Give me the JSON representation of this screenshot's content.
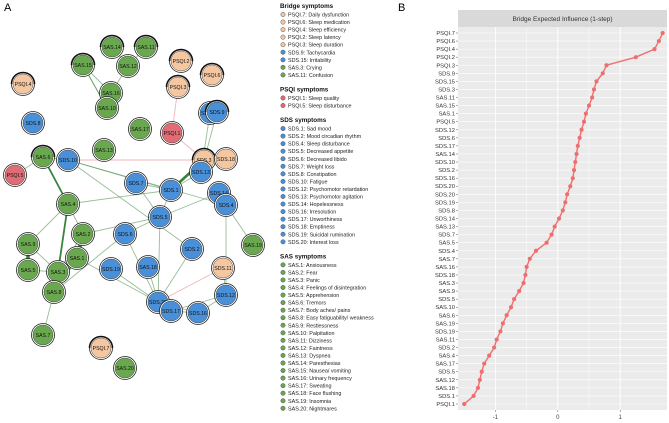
{
  "panel_labels": {
    "a": "A",
    "b": "B"
  },
  "colors": {
    "sds": "#4a90d9",
    "sas": "#6aa84f",
    "psqi_bridge": "#f4c7a1",
    "psqi_symptom": "#e06c75",
    "edge_pos": "#2e7d32",
    "edge_neg": "#e06c75",
    "line": "#f06e6e",
    "strip": "#d9d9d9",
    "panel_bg": "#ebebeb"
  },
  "network": {
    "nodes": [
      {
        "id": "SAS.14",
        "group": "sas",
        "bridge": true
      },
      {
        "id": "SAS.11",
        "group": "sas",
        "bridge": true
      },
      {
        "id": "SAS.15",
        "group": "sas",
        "bridge": true
      },
      {
        "id": "SAS.12",
        "group": "sas",
        "bridge": false
      },
      {
        "id": "SAS.16",
        "group": "sas",
        "bridge": false
      },
      {
        "id": "SAS.10",
        "group": "sas",
        "bridge": false
      },
      {
        "id": "SDS.8",
        "group": "sds",
        "bridge": false
      },
      {
        "id": "SAS.17",
        "group": "sas",
        "bridge": false
      },
      {
        "id": "SAS.13",
        "group": "sas",
        "bridge": false
      },
      {
        "id": "SAS.6",
        "group": "sas",
        "bridge": true
      },
      {
        "id": "SDS.10",
        "group": "sds",
        "bridge": false
      },
      {
        "id": "PSQI.5",
        "group": "psqi_symptom",
        "bridge": false
      },
      {
        "id": "SAS.4",
        "group": "sas",
        "bridge": false
      },
      {
        "id": "SAS.9",
        "group": "sas",
        "bridge": false
      },
      {
        "id": "SAS.2",
        "group": "sas",
        "bridge": false
      },
      {
        "id": "SAS.5",
        "group": "sas",
        "bridge": false
      },
      {
        "id": "SAS.3",
        "group": "sas",
        "bridge": false
      },
      {
        "id": "SAS.1",
        "group": "sas",
        "bridge": false
      },
      {
        "id": "SAS.8",
        "group": "sas",
        "bridge": false
      },
      {
        "id": "SAS.7",
        "group": "sas",
        "bridge": false
      },
      {
        "id": "PSQI.2",
        "group": "psqi_bridge",
        "bridge": true
      },
      {
        "id": "PSQI.4",
        "group": "psqi_bridge",
        "bridge": true
      },
      {
        "id": "PSQI.3",
        "group": "psqi_bridge",
        "bridge": true
      },
      {
        "id": "PSQI.6",
        "group": "psqi_bridge",
        "bridge": true
      },
      {
        "id": "PSQI.1",
        "group": "psqi_symptom",
        "bridge": false
      },
      {
        "id": "SDS.15",
        "group": "sds",
        "bridge": false
      },
      {
        "id": "SDS.9",
        "group": "sds",
        "bridge": true
      },
      {
        "id": "SDS.3",
        "group": "psqi_bridge",
        "bridge": true
      },
      {
        "id": "SDS.13",
        "group": "sds",
        "bridge": false
      },
      {
        "id": "SDS.1",
        "group": "sds",
        "bridge": false
      },
      {
        "id": "SDS.18",
        "group": "psqi_bridge",
        "bridge": false
      },
      {
        "id": "SDS.7",
        "group": "sds",
        "bridge": false
      },
      {
        "id": "SDS.14",
        "group": "sds",
        "bridge": false
      },
      {
        "id": "SDS.5",
        "group": "sds",
        "bridge": false
      },
      {
        "id": "SDS.6",
        "group": "sds",
        "bridge": false
      },
      {
        "id": "SDS.4",
        "group": "sds",
        "bridge": false
      },
      {
        "id": "SDS.2",
        "group": "sds",
        "bridge": false
      },
      {
        "id": "SAS.18",
        "group": "sds",
        "bridge": false
      },
      {
        "id": "SAS.19",
        "group": "sas",
        "bridge": false
      },
      {
        "id": "SDS.19",
        "group": "sds",
        "bridge": false
      },
      {
        "id": "SDS.20",
        "group": "sds",
        "bridge": false
      },
      {
        "id": "SDS.11",
        "group": "psqi_bridge",
        "bridge": false
      },
      {
        "id": "SDS.12",
        "group": "sds",
        "bridge": false
      },
      {
        "id": "SDS.17",
        "group": "sds",
        "bridge": false
      },
      {
        "id": "SDS.16",
        "group": "sds",
        "bridge": false
      },
      {
        "id": "PSQI.7",
        "group": "psqi_bridge",
        "bridge": true
      },
      {
        "id": "SAS.20",
        "group": "sas",
        "bridge": false
      }
    ],
    "edges": [
      [
        "SAS.14",
        "SAS.12",
        1,
        "pos"
      ],
      [
        "SAS.11",
        "SAS.12",
        1,
        "pos"
      ],
      [
        "SAS.15",
        "SAS.16",
        1,
        "pos"
      ],
      [
        "SAS.15",
        "SAS.10",
        1,
        "pos"
      ],
      [
        "SAS.16",
        "SAS.12",
        1,
        "pos"
      ],
      [
        "SAS.10",
        "SAS.15",
        1,
        "pos"
      ],
      [
        "SAS.6",
        "SDS.10",
        1,
        "pos"
      ],
      [
        "SAS.6",
        "SAS.4",
        2,
        "pos"
      ],
      [
        "SAS.4",
        "SAS.2",
        1,
        "pos"
      ],
      [
        "SAS.4",
        "SAS.3",
        2,
        "pos"
      ],
      [
        "SAS.4",
        "SAS.9",
        1,
        "pos"
      ],
      [
        "SAS.9",
        "SAS.5",
        4,
        "pos"
      ],
      [
        "SAS.9",
        "SAS.3",
        1,
        "pos"
      ],
      [
        "SAS.5",
        "SAS.3",
        1,
        "pos"
      ],
      [
        "SAS.3",
        "SAS.1",
        2,
        "pos"
      ],
      [
        "SAS.2",
        "SAS.1",
        4,
        "pos"
      ],
      [
        "SAS.3",
        "SAS.2",
        1,
        "pos"
      ],
      [
        "SAS.1",
        "SAS.8",
        2,
        "pos"
      ],
      [
        "SAS.3",
        "SAS.8",
        1,
        "pos"
      ],
      [
        "SAS.8",
        "SAS.7",
        1,
        "pos"
      ],
      [
        "PSQI.5",
        "SAS.6",
        1,
        "pos"
      ],
      [
        "SAS.4",
        "SDS.1",
        1,
        "pos"
      ],
      [
        "SAS.2",
        "SDS.5",
        1,
        "pos"
      ],
      [
        "SAS.1",
        "SDS.20",
        1,
        "pos"
      ],
      [
        "SAS.8",
        "SDS.6",
        1,
        "pos"
      ],
      [
        "PSQI.1",
        "PSQI.3",
        1,
        "neg"
      ],
      [
        "PSQI.1",
        "SDS.3",
        1,
        "neg"
      ],
      [
        "SDS.3",
        "SDS.1",
        3,
        "pos"
      ],
      [
        "SDS.1",
        "SDS.13",
        1,
        "pos"
      ],
      [
        "SDS.1",
        "SDS.10",
        1,
        "pos"
      ],
      [
        "SDS.13",
        "SDS.9",
        1,
        "pos"
      ],
      [
        "SDS.1",
        "SDS.7",
        1,
        "pos"
      ],
      [
        "SDS.1",
        "SDS.5",
        1,
        "pos"
      ],
      [
        "SDS.10",
        "SDS.4",
        1,
        "pos"
      ],
      [
        "SDS.13",
        "SDS.15",
        1,
        "pos"
      ],
      [
        "SDS.5",
        "SDS.6",
        1,
        "pos"
      ],
      [
        "SDS.5",
        "SDS.20",
        1,
        "pos"
      ],
      [
        "SDS.6",
        "SDS.20",
        1,
        "pos"
      ],
      [
        "SDS.20",
        "SAS.18",
        1,
        "pos"
      ],
      [
        "SDS.20",
        "SDS.11",
        1,
        "neg"
      ],
      [
        "SDS.20",
        "SDS.17",
        3,
        "pos"
      ],
      [
        "SDS.20",
        "SDS.16",
        1,
        "pos"
      ],
      [
        "SDS.11",
        "SDS.12",
        1,
        "pos"
      ],
      [
        "SDS.12",
        "SDS.16",
        1,
        "pos"
      ],
      [
        "SDS.17",
        "SDS.16",
        1,
        "pos"
      ],
      [
        "SDS.10",
        "SDS.2",
        1,
        "pos"
      ],
      [
        "SDS.2",
        "SDS.20",
        1,
        "pos"
      ],
      [
        "SAS.19",
        "SDS.4",
        1,
        "pos"
      ],
      [
        "SDS.14",
        "SDS.5",
        1,
        "pos"
      ],
      [
        "SDS.7",
        "SDS.5",
        1,
        "pos"
      ],
      [
        "SDS.4",
        "SDS.12",
        1,
        "pos"
      ],
      [
        "SDS.10",
        "SDS.3",
        1,
        "neg"
      ],
      [
        "SDS.19",
        "SDS.20",
        1,
        "pos"
      ],
      [
        "SDS.12",
        "SDS.17",
        1,
        "pos"
      ]
    ]
  },
  "legend": [
    {
      "heading": "Bridge symptoms",
      "items": [
        {
          "label": "PSQI.7: Daily dysfunction",
          "color": "#f4c7a1"
        },
        {
          "label": "PSQI.6: Sleep medication",
          "color": "#f4c7a1"
        },
        {
          "label": "PSQI.4: Sleep efficiency",
          "color": "#f4c7a1"
        },
        {
          "label": "PSQI.2: Sleep latency",
          "color": "#f4c7a1"
        },
        {
          "label": "PSQI.3: Sleep duration",
          "color": "#f4c7a1"
        },
        {
          "label": "SDS.9: Tachycardia",
          "color": "#4a90d9"
        },
        {
          "label": "SDS.15: Irritability",
          "color": "#4a90d9"
        },
        {
          "label": "SAS.3: Crying",
          "color": "#6aa84f"
        },
        {
          "label": "SAS.11: Confusion",
          "color": "#6aa84f"
        }
      ]
    },
    {
      "heading": "PSQI symptoms",
      "items": [
        {
          "label": "PSQI.1: Sleep quality",
          "color": "#e06c75"
        },
        {
          "label": "PSQI.5: Sleep disturbance",
          "color": "#e06c75"
        }
      ]
    },
    {
      "heading": "SDS symptoms",
      "items": [
        {
          "label": "SDS.1: Sad mood",
          "color": "#4a90d9"
        },
        {
          "label": "SDS.2: Mood circadian rhythm",
          "color": "#4a90d9"
        },
        {
          "label": "SDS.4: Sleep disturbance",
          "color": "#4a90d9"
        },
        {
          "label": "SDS.5: Decreased appetite",
          "color": "#4a90d9"
        },
        {
          "label": "SDS.6: Decreased libido",
          "color": "#4a90d9"
        },
        {
          "label": "SDS.7: Weight loss",
          "color": "#4a90d9"
        },
        {
          "label": "SDS.8: Constipation",
          "color": "#4a90d9"
        },
        {
          "label": "SDS.10: Fatigue",
          "color": "#4a90d9"
        },
        {
          "label": "SDS.12: Psychomotor retardation",
          "color": "#4a90d9"
        },
        {
          "label": "SDS.13: Psychomotor agitation",
          "color": "#4a90d9"
        },
        {
          "label": "SDS.14: Hopelessness",
          "color": "#4a90d9"
        },
        {
          "label": "SDS.16: Irresolution",
          "color": "#4a90d9"
        },
        {
          "label": "SDS.17: Unworthiness",
          "color": "#4a90d9"
        },
        {
          "label": "SDS.18: Emptiness",
          "color": "#4a90d9"
        },
        {
          "label": "SDS.19: Suicidal rumination",
          "color": "#4a90d9"
        },
        {
          "label": "SDS.20: Interest loss",
          "color": "#4a90d9"
        }
      ]
    },
    {
      "heading": "SAS symptoms",
      "items": [
        {
          "label": "SAS.1: Anxiousness",
          "color": "#6aa84f"
        },
        {
          "label": "SAS.2: Fear",
          "color": "#6aa84f"
        },
        {
          "label": "SAS.3: Panic",
          "color": "#6aa84f"
        },
        {
          "label": "SAS.4: Feelings of disintegration",
          "color": "#6aa84f"
        },
        {
          "label": "SAS.5: Apprehension",
          "color": "#6aa84f"
        },
        {
          "label": "SAS.6: Tremors",
          "color": "#6aa84f"
        },
        {
          "label": "SAS.7: Body aches/ pains",
          "color": "#6aa84f"
        },
        {
          "label": "SAS.8: Easy fatiguability/ weakness",
          "color": "#6aa84f"
        },
        {
          "label": "SAS.9: Restlessness",
          "color": "#6aa84f"
        },
        {
          "label": "SAS.10: Palpitation",
          "color": "#6aa84f"
        },
        {
          "label": "SAS.11: Dizziness",
          "color": "#6aa84f"
        },
        {
          "label": "SAS.12: Faintness",
          "color": "#6aa84f"
        },
        {
          "label": "SAS.13: Dyspnea",
          "color": "#6aa84f"
        },
        {
          "label": "SAS.14: Paresthesias",
          "color": "#6aa84f"
        },
        {
          "label": "SAS.15: Nausea/ vomiting",
          "color": "#6aa84f"
        },
        {
          "label": "SAS.16: Urinary frequency",
          "color": "#6aa84f"
        },
        {
          "label": "SAS.17: Sweating",
          "color": "#6aa84f"
        },
        {
          "label": "SAS.18: Face flushing",
          "color": "#6aa84f"
        },
        {
          "label": "SAS.19: Insomnia",
          "color": "#6aa84f"
        },
        {
          "label": "SAS.20: Nightmares",
          "color": "#6aa84f"
        }
      ]
    }
  ],
  "chart_data": {
    "type": "line",
    "title": "Bridge Expected Influence (1-step)",
    "xlabel": "",
    "ylabel": "",
    "xlim": [
      -1.6,
      1.75
    ],
    "xticks": [
      -1,
      0,
      1
    ],
    "xtick_labels": [
      "-1",
      "0",
      "1"
    ],
    "grid": true,
    "points": [
      {
        "label": "PSQI.7",
        "value": 1.68
      },
      {
        "label": "PSQI.6",
        "value": 1.62
      },
      {
        "label": "PSQI.4",
        "value": 1.55
      },
      {
        "label": "PSQI.2",
        "value": 1.25
      },
      {
        "label": "PSQI.3",
        "value": 0.78
      },
      {
        "label": "SDS.9",
        "value": 0.72
      },
      {
        "label": "SDS.15",
        "value": 0.62
      },
      {
        "label": "SDS.3",
        "value": 0.58
      },
      {
        "label": "SAS.11",
        "value": 0.55
      },
      {
        "label": "SAS.15",
        "value": 0.5
      },
      {
        "label": "SAS.1",
        "value": 0.45
      },
      {
        "label": "PSQI.5",
        "value": 0.42
      },
      {
        "label": "SDS.12",
        "value": 0.38
      },
      {
        "label": "SDS.6",
        "value": 0.35
      },
      {
        "label": "SDS.17",
        "value": 0.32
      },
      {
        "label": "SAS.14",
        "value": 0.3
      },
      {
        "label": "SDS.10",
        "value": 0.28
      },
      {
        "label": "SDS.2",
        "value": 0.26
      },
      {
        "label": "SDS.16",
        "value": 0.24
      },
      {
        "label": "SDS.20",
        "value": 0.2
      },
      {
        "label": "SDS.20",
        "value": 0.15
      },
      {
        "label": "SDS.19",
        "value": 0.12
      },
      {
        "label": "SDS.8",
        "value": 0.08
      },
      {
        "label": "SDS.14",
        "value": 0.02
      },
      {
        "label": "SAS.13",
        "value": -0.05
      },
      {
        "label": "SDS.7",
        "value": -0.1
      },
      {
        "label": "SAS.5",
        "value": -0.18
      },
      {
        "label": "SDS.4",
        "value": -0.35
      },
      {
        "label": "SAS.7",
        "value": -0.45
      },
      {
        "label": "SAS.16",
        "value": -0.5
      },
      {
        "label": "SDS.18",
        "value": -0.52
      },
      {
        "label": "SAS.3",
        "value": -0.55
      },
      {
        "label": "SAS.9",
        "value": -0.62
      },
      {
        "label": "SDS.5",
        "value": -0.7
      },
      {
        "label": "SAS.10",
        "value": -0.75
      },
      {
        "label": "SAS.6",
        "value": -0.82
      },
      {
        "label": "SAS.19",
        "value": -0.88
      },
      {
        "label": "SDS.19",
        "value": -0.92
      },
      {
        "label": "SAS.11",
        "value": -0.98
      },
      {
        "label": "SDS.2",
        "value": -1.02
      },
      {
        "label": "SAS.4",
        "value": -1.1
      },
      {
        "label": "SAS.17",
        "value": -1.18
      },
      {
        "label": "SDS.5",
        "value": -1.22
      },
      {
        "label": "SAS.12",
        "value": -1.25
      },
      {
        "label": "SAS.18",
        "value": -1.28
      },
      {
        "label": "SDS.1",
        "value": -1.35
      },
      {
        "label": "PSQI.1",
        "value": -1.5
      }
    ]
  }
}
